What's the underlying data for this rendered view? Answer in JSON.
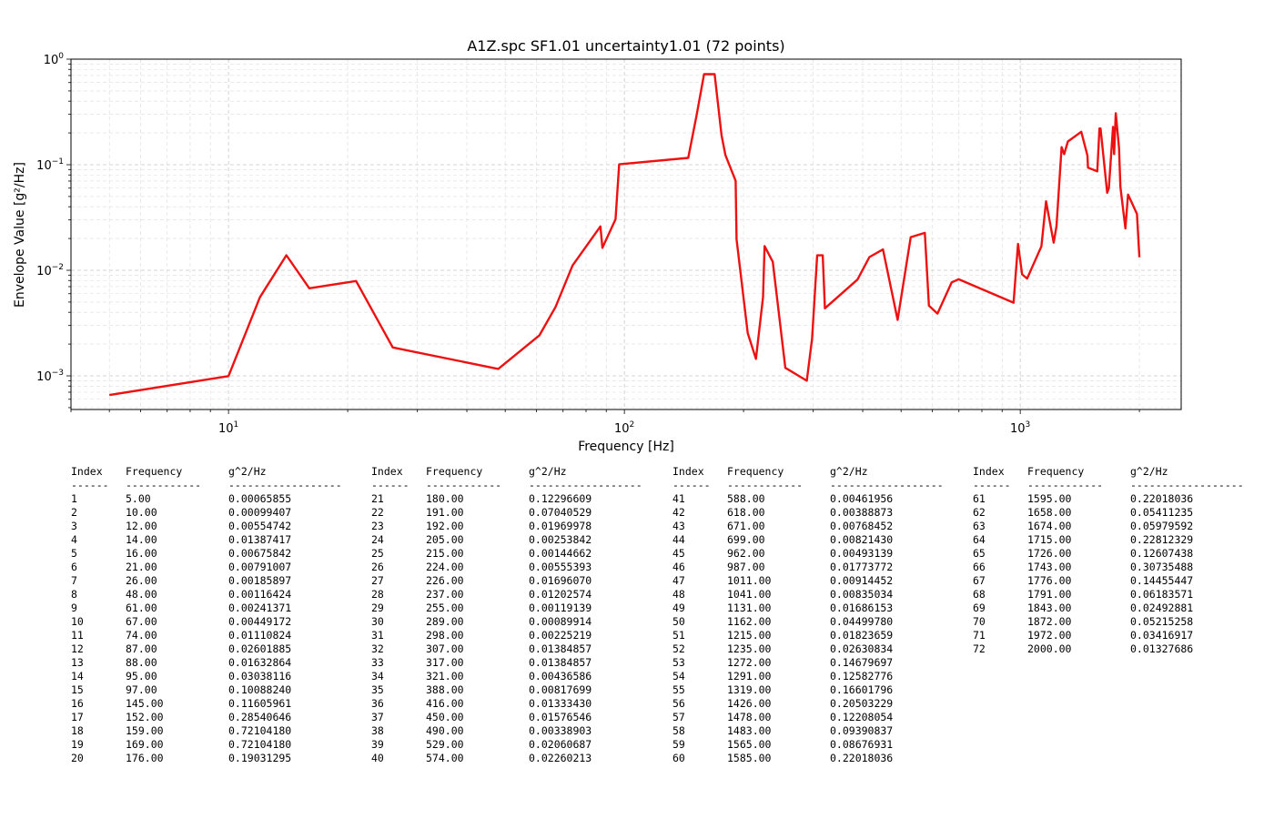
{
  "chart_data": {
    "type": "line",
    "title": "A1Z.spc SF1.01 uncertainty1.01 (72 points)",
    "xlabel": "Frequency [Hz]",
    "ylabel": "Envelope Value [g²/Hz]",
    "xscale": "log",
    "yscale": "log",
    "xlim": [
      4.0,
      2550.0
    ],
    "ylim": [
      0.00048,
      1.0
    ],
    "grid": true,
    "color": "#ee1111",
    "x_ticks": [
      {
        "value": 10,
        "label": "10"
      },
      {
        "value": 100,
        "label": "10"
      },
      {
        "value": 1000,
        "label": "10"
      }
    ],
    "x_tick_exps": [
      "1",
      "2",
      "3"
    ],
    "y_ticks": [
      {
        "value": 0.001,
        "label": "10"
      },
      {
        "value": 0.01,
        "label": "10"
      },
      {
        "value": 0.1,
        "label": "10"
      },
      {
        "value": 1,
        "label": "10"
      }
    ],
    "y_tick_exps": [
      "−3",
      "−2",
      "−1",
      "0"
    ],
    "x": [
      5,
      10,
      12,
      14,
      16,
      21,
      26,
      48,
      61,
      67,
      74,
      87,
      88,
      95,
      97,
      145,
      152,
      159,
      169,
      176,
      180,
      191,
      192,
      205,
      215,
      224,
      226,
      237,
      255,
      289,
      298,
      307,
      317,
      321,
      388,
      416,
      450,
      490,
      529,
      574,
      588,
      618,
      671,
      699,
      962,
      987,
      1011,
      1041,
      1131,
      1162,
      1215,
      1235,
      1272,
      1291,
      1319,
      1426,
      1478,
      1483,
      1565,
      1585,
      1595,
      1658,
      1674,
      1715,
      1726,
      1743,
      1776,
      1791,
      1843,
      1872,
      1972,
      2000
    ],
    "y": [
      0.00065855,
      0.00099407,
      0.00554742,
      0.01387417,
      0.00675842,
      0.00791007,
      0.00185897,
      0.00116424,
      0.00241371,
      0.00449172,
      0.01110824,
      0.02601885,
      0.01632864,
      0.03038116,
      0.1008824,
      0.11605961,
      0.28540646,
      0.7210418,
      0.7210418,
      0.19031295,
      0.12296609,
      0.07040529,
      0.01969978,
      0.00253842,
      0.00144662,
      0.00555393,
      0.0169607,
      0.01202574,
      0.00119139,
      0.00089914,
      0.00225219,
      0.01384857,
      0.01384857,
      0.00436586,
      0.00817699,
      0.0133343,
      0.01576546,
      0.00338903,
      0.02060687,
      0.02260213,
      0.00461956,
      0.00388873,
      0.00768452,
      0.0082143,
      0.00493139,
      0.01773772,
      0.00914452,
      0.00835034,
      0.01686153,
      0.0449978,
      0.01823659,
      0.02630834,
      0.14679697,
      0.12582776,
      0.16601796,
      0.20503229,
      0.12208054,
      0.09390837,
      0.08676931,
      0.22018036,
      0.22018036,
      0.05411235,
      0.05979592,
      0.22812329,
      0.12607438,
      0.30735488,
      0.14455447,
      0.06183571,
      0.02492881,
      0.05215258,
      0.03416917,
      0.01327686
    ]
  },
  "table": {
    "headers": [
      "Index",
      "Frequency",
      "g^2/Hz"
    ],
    "separators": [
      "------",
      "------------",
      "------------------"
    ],
    "rows": [
      [
        "1",
        "5.00",
        "0.00065855"
      ],
      [
        "2",
        "10.00",
        "0.00099407"
      ],
      [
        "3",
        "12.00",
        "0.00554742"
      ],
      [
        "4",
        "14.00",
        "0.01387417"
      ],
      [
        "5",
        "16.00",
        "0.00675842"
      ],
      [
        "6",
        "21.00",
        "0.00791007"
      ],
      [
        "7",
        "26.00",
        "0.00185897"
      ],
      [
        "8",
        "48.00",
        "0.00116424"
      ],
      [
        "9",
        "61.00",
        "0.00241371"
      ],
      [
        "10",
        "67.00",
        "0.00449172"
      ],
      [
        "11",
        "74.00",
        "0.01110824"
      ],
      [
        "12",
        "87.00",
        "0.02601885"
      ],
      [
        "13",
        "88.00",
        "0.01632864"
      ],
      [
        "14",
        "95.00",
        "0.03038116"
      ],
      [
        "15",
        "97.00",
        "0.10088240"
      ],
      [
        "16",
        "145.00",
        "0.11605961"
      ],
      [
        "17",
        "152.00",
        "0.28540646"
      ],
      [
        "18",
        "159.00",
        "0.72104180"
      ],
      [
        "19",
        "169.00",
        "0.72104180"
      ],
      [
        "20",
        "176.00",
        "0.19031295"
      ],
      [
        "21",
        "180.00",
        "0.12296609"
      ],
      [
        "22",
        "191.00",
        "0.07040529"
      ],
      [
        "23",
        "192.00",
        "0.01969978"
      ],
      [
        "24",
        "205.00",
        "0.00253842"
      ],
      [
        "25",
        "215.00",
        "0.00144662"
      ],
      [
        "26",
        "224.00",
        "0.00555393"
      ],
      [
        "27",
        "226.00",
        "0.01696070"
      ],
      [
        "28",
        "237.00",
        "0.01202574"
      ],
      [
        "29",
        "255.00",
        "0.00119139"
      ],
      [
        "30",
        "289.00",
        "0.00089914"
      ],
      [
        "31",
        "298.00",
        "0.00225219"
      ],
      [
        "32",
        "307.00",
        "0.01384857"
      ],
      [
        "33",
        "317.00",
        "0.01384857"
      ],
      [
        "34",
        "321.00",
        "0.00436586"
      ],
      [
        "35",
        "388.00",
        "0.00817699"
      ],
      [
        "36",
        "416.00",
        "0.01333430"
      ],
      [
        "37",
        "450.00",
        "0.01576546"
      ],
      [
        "38",
        "490.00",
        "0.00338903"
      ],
      [
        "39",
        "529.00",
        "0.02060687"
      ],
      [
        "40",
        "574.00",
        "0.02260213"
      ],
      [
        "41",
        "588.00",
        "0.00461956"
      ],
      [
        "42",
        "618.00",
        "0.00388873"
      ],
      [
        "43",
        "671.00",
        "0.00768452"
      ],
      [
        "44",
        "699.00",
        "0.00821430"
      ],
      [
        "45",
        "962.00",
        "0.00493139"
      ],
      [
        "46",
        "987.00",
        "0.01773772"
      ],
      [
        "47",
        "1011.00",
        "0.00914452"
      ],
      [
        "48",
        "1041.00",
        "0.00835034"
      ],
      [
        "49",
        "1131.00",
        "0.01686153"
      ],
      [
        "50",
        "1162.00",
        "0.04499780"
      ],
      [
        "51",
        "1215.00",
        "0.01823659"
      ],
      [
        "52",
        "1235.00",
        "0.02630834"
      ],
      [
        "53",
        "1272.00",
        "0.14679697"
      ],
      [
        "54",
        "1291.00",
        "0.12582776"
      ],
      [
        "55",
        "1319.00",
        "0.16601796"
      ],
      [
        "56",
        "1426.00",
        "0.20503229"
      ],
      [
        "57",
        "1478.00",
        "0.12208054"
      ],
      [
        "58",
        "1483.00",
        "0.09390837"
      ],
      [
        "59",
        "1565.00",
        "0.08676931"
      ],
      [
        "60",
        "1585.00",
        "0.22018036"
      ],
      [
        "61",
        "1595.00",
        "0.22018036"
      ],
      [
        "62",
        "1658.00",
        "0.05411235"
      ],
      [
        "63",
        "1674.00",
        "0.05979592"
      ],
      [
        "64",
        "1715.00",
        "0.22812329"
      ],
      [
        "65",
        "1726.00",
        "0.12607438"
      ],
      [
        "66",
        "1743.00",
        "0.30735488"
      ],
      [
        "67",
        "1776.00",
        "0.14455447"
      ],
      [
        "68",
        "1791.00",
        "0.06183571"
      ],
      [
        "69",
        "1843.00",
        "0.02492881"
      ],
      [
        "70",
        "1872.00",
        "0.05215258"
      ],
      [
        "71",
        "1972.00",
        "0.03416917"
      ],
      [
        "72",
        "2000.00",
        "0.01327686"
      ]
    ]
  }
}
